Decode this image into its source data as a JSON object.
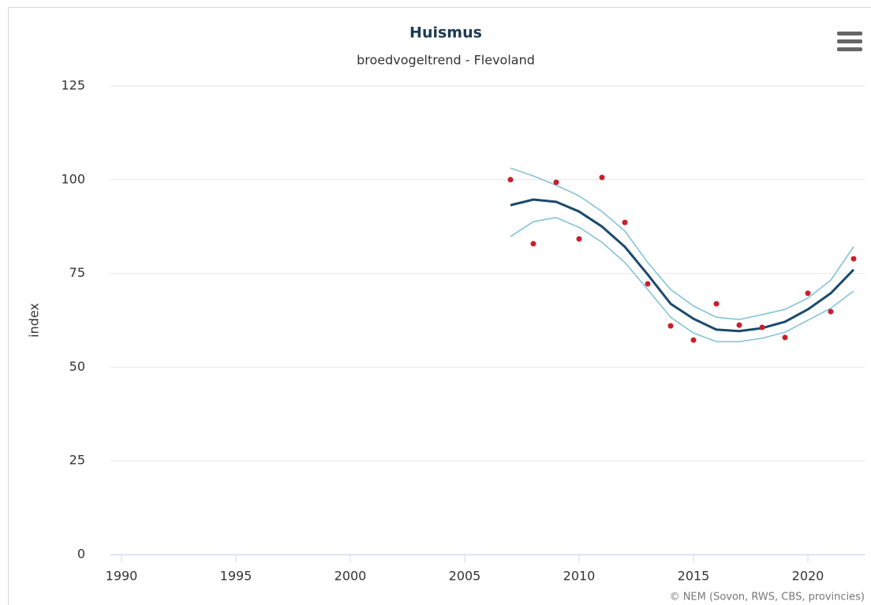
{
  "chart_data": {
    "type": "line",
    "title": "Huismus",
    "subtitle": "broedvogeltrend - Flevoland",
    "y_label": "index",
    "credits": "© NEM (Sovon, RWS, CBS, provincies)",
    "x": [
      2007,
      2008,
      2009,
      2010,
      2011,
      2012,
      2013,
      2014,
      2015,
      2016,
      2017,
      2018,
      2019,
      2020,
      2021,
      2022
    ],
    "series": [
      {
        "type": "line",
        "color": "#7cbfd6",
        "width": 1.5,
        "values": [
          103.1,
          101.0,
          98.5,
          95.7,
          91.5,
          86.3,
          77.9,
          70.7,
          66.3,
          63.3,
          62.7,
          64.0,
          65.4,
          68.4,
          73.2,
          82.1
        ]
      },
      {
        "type": "line",
        "color": "#7cbfd6",
        "width": 1.5,
        "values": [
          84.8,
          88.8,
          89.9,
          87.3,
          83.3,
          77.9,
          70.7,
          63.3,
          59.1,
          56.8,
          56.8,
          57.7,
          59.3,
          62.5,
          65.7,
          70.3
        ]
      },
      {
        "type": "line",
        "color": "#1b4a6e",
        "width": 3,
        "values": [
          93.2,
          94.7,
          94.1,
          91.5,
          87.5,
          82.1,
          74.7,
          66.9,
          62.9,
          60.0,
          59.6,
          60.4,
          62.1,
          65.4,
          69.7,
          76.0
        ]
      },
      {
        "type": "scatter",
        "color": "#c8202a",
        "values": [
          100.0,
          82.9,
          99.3,
          84.2,
          100.6,
          88.6,
          72.2,
          61.0,
          57.2,
          66.9,
          61.2,
          60.6,
          57.9,
          69.7,
          64.8,
          78.9
        ]
      }
    ],
    "xlim": [
      1989.5,
      2022.5
    ],
    "xticks": [
      1990,
      1995,
      2000,
      2005,
      2010,
      2015,
      2020
    ],
    "ylim": [
      0,
      125
    ],
    "yticks": [
      0,
      25,
      50,
      75,
      100,
      125
    ],
    "grid": true
  }
}
